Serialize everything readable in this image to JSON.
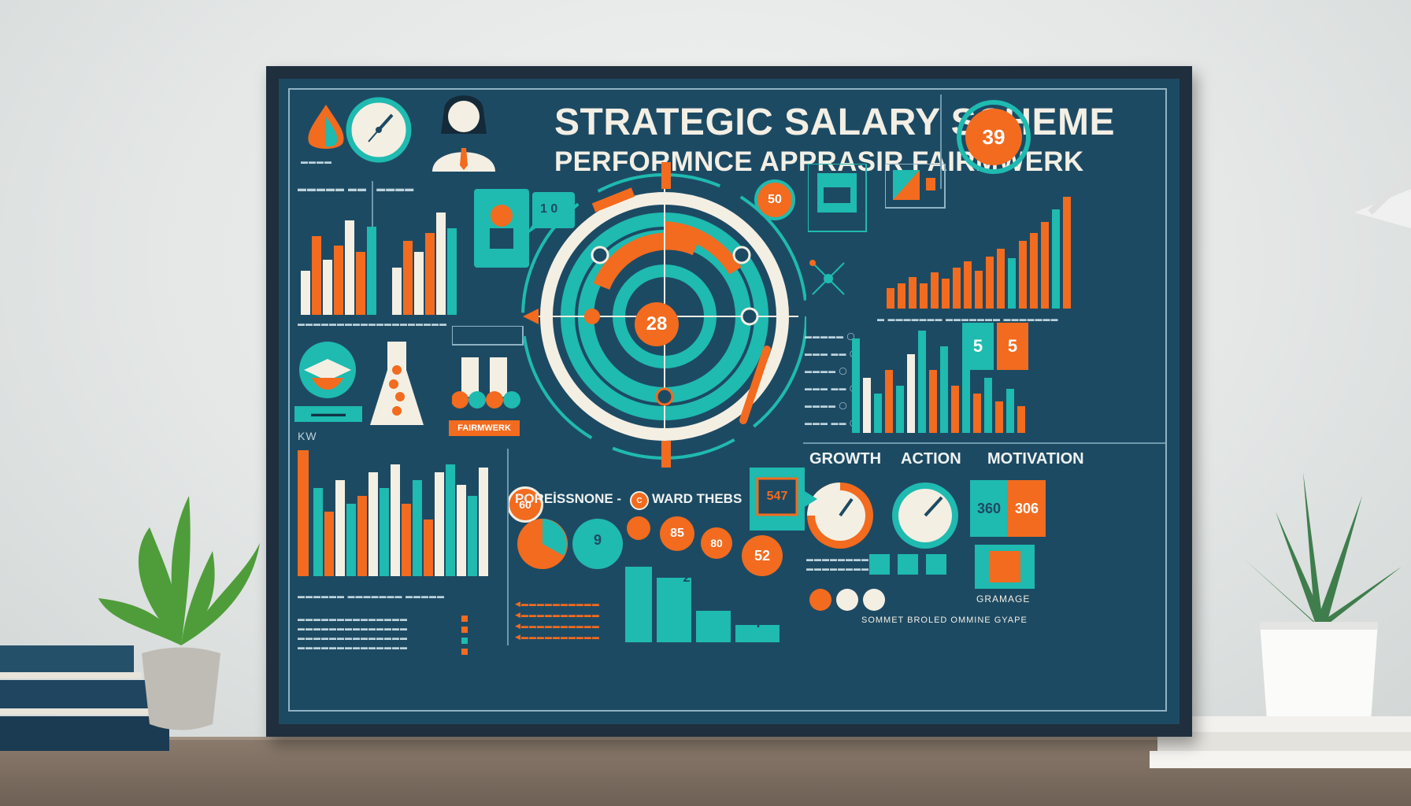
{
  "colors": {
    "navy": "#1d4a63",
    "teal": "#1fbab0",
    "orange": "#f26b1f",
    "cream": "#f4efe3",
    "frame": "#1f2f3d"
  },
  "poster": {
    "title_line1": "STRATEGIC SALARY SCHEME",
    "title_line2": "PERFORMNCE APPRASIR FAIRMWERK",
    "center_value": "28",
    "top_right_value": "39",
    "section_growth": "GROWTH",
    "section_action": "ACTION",
    "section_motivation": "MOTIVATION",
    "subheading": "POREİSSNONE -",
    "subheading_right": "WARD THEBS",
    "value_547": "547",
    "value_360": "360",
    "value_306": "306",
    "value_9": "9",
    "value_85": "85",
    "value_80": "80",
    "value_52": "52",
    "value_7": "7",
    "value_5a": "5",
    "value_5b": "5",
    "value_60": "60",
    "value_50": "50",
    "value_2": "2",
    "label_gramage": "GRAMAGE",
    "footer_text": "SOMMET BROLED OMMINE GYAPE",
    "label_fairmwerk": "FAIRMWERK",
    "label_kw": "KW"
  }
}
